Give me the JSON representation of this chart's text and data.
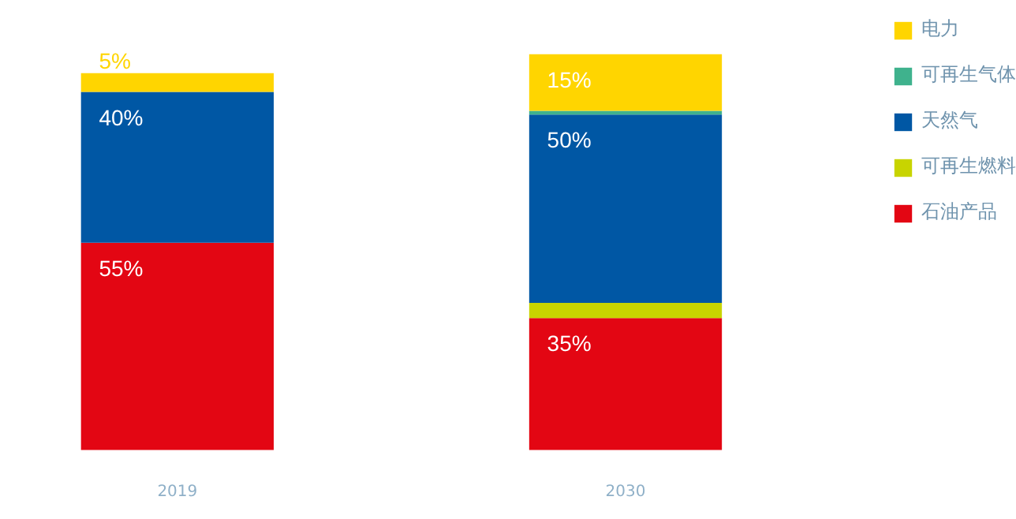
{
  "chart_data": {
    "type": "bar",
    "stacked": true,
    "categories": [
      "2019",
      "2030"
    ],
    "series": [
      {
        "name": "石油产品",
        "color": "#e30613",
        "values": [
          55,
          35
        ],
        "value_labels": [
          "55%",
          "35%"
        ]
      },
      {
        "name": "可再生燃料",
        "color": "#c8d400",
        "values": [
          0,
          4
        ],
        "value_labels": [
          null,
          null
        ]
      },
      {
        "name": "天然气",
        "color": "#0057a4",
        "values": [
          40,
          50
        ],
        "value_labels": [
          "40%",
          "50%"
        ]
      },
      {
        "name": "可再生气体",
        "color": "#3fb28d",
        "values": [
          0,
          1
        ],
        "value_labels": [
          null,
          null
        ]
      },
      {
        "name": "电力",
        "color": "#ffd500",
        "values": [
          5,
          15
        ],
        "value_labels": [
          "5%",
          "15%"
        ]
      }
    ],
    "legend": "right",
    "grid": false
  }
}
